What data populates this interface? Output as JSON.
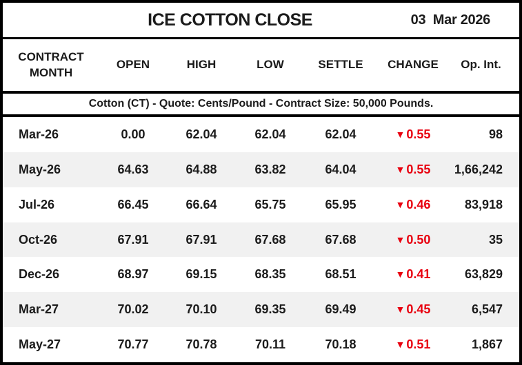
{
  "title_bar": {
    "title": "ICE COTTON CLOSE",
    "date": "03  Mar 2026"
  },
  "columns": {
    "contract_month": "CONTRACT MONTH",
    "open": "OPEN",
    "high": "HIGH",
    "low": "LOW",
    "settle": "SETTLE",
    "change": "CHANGE",
    "op_int": "Op. Int."
  },
  "subheader": "Cotton (CT) - Quote: Cents/Pound - Contract Size: 50,000 Pounds.",
  "icons": {
    "down_arrow": "▼"
  },
  "colors": {
    "change_negative": "#e8000f",
    "row_alternate": "#f1f1f1",
    "border": "#000000"
  },
  "rows": [
    {
      "month": "Mar-26",
      "open": "0.00",
      "high": "62.04",
      "low": "62.04",
      "settle": "62.04",
      "change": "0.55",
      "change_direction": "down",
      "op_int": "98"
    },
    {
      "month": "May-26",
      "open": "64.63",
      "high": "64.88",
      "low": "63.82",
      "settle": "64.04",
      "change": "0.55",
      "change_direction": "down",
      "op_int": "1,66,242"
    },
    {
      "month": "Jul-26",
      "open": "66.45",
      "high": "66.64",
      "low": "65.75",
      "settle": "65.95",
      "change": "0.46",
      "change_direction": "down",
      "op_int": "83,918"
    },
    {
      "month": "Oct-26",
      "open": "67.91",
      "high": "67.91",
      "low": "67.68",
      "settle": "67.68",
      "change": "0.50",
      "change_direction": "down",
      "op_int": "35"
    },
    {
      "month": "Dec-26",
      "open": "68.97",
      "high": "69.15",
      "low": "68.35",
      "settle": "68.51",
      "change": "0.41",
      "change_direction": "down",
      "op_int": "63,829"
    },
    {
      "month": "Mar-27",
      "open": "70.02",
      "high": "70.10",
      "low": "69.35",
      "settle": "69.49",
      "change": "0.45",
      "change_direction": "down",
      "op_int": "6,547"
    },
    {
      "month": "May-27",
      "open": "70.77",
      "high": "70.78",
      "low": "70.11",
      "settle": "70.18",
      "change": "0.51",
      "change_direction": "down",
      "op_int": "1,867"
    }
  ],
  "chart_data": {
    "type": "table",
    "title": "ICE COTTON CLOSE",
    "date": "03 Mar 2026",
    "note": "Cotton (CT) - Quote: Cents/Pound - Contract Size: 50,000 Pounds.",
    "columns": [
      "CONTRACT MONTH",
      "OPEN",
      "HIGH",
      "LOW",
      "SETTLE",
      "CHANGE",
      "Op. Int."
    ],
    "rows": [
      [
        "Mar-26",
        0.0,
        62.04,
        62.04,
        62.04,
        -0.55,
        "98"
      ],
      [
        "May-26",
        64.63,
        64.88,
        63.82,
        64.04,
        -0.55,
        "1,66,242"
      ],
      [
        "Jul-26",
        66.45,
        66.64,
        65.75,
        65.95,
        -0.46,
        "83,918"
      ],
      [
        "Oct-26",
        67.91,
        67.91,
        67.68,
        67.68,
        -0.5,
        "35"
      ],
      [
        "Dec-26",
        68.97,
        69.15,
        68.35,
        68.51,
        -0.41,
        "63,829"
      ],
      [
        "Mar-27",
        70.02,
        70.1,
        69.35,
        69.49,
        -0.45,
        "6,547"
      ],
      [
        "May-27",
        70.77,
        70.78,
        70.11,
        70.18,
        -0.51,
        "1,867"
      ]
    ]
  }
}
